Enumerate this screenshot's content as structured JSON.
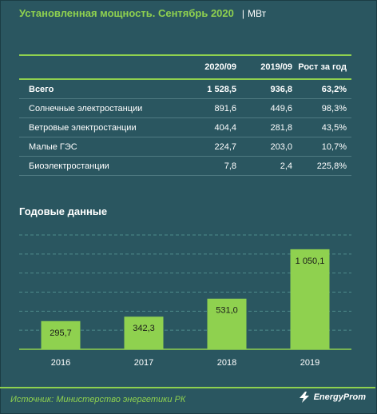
{
  "header": {
    "title": "Установленная мощность. Сентябрь 2020",
    "separator": "|",
    "unit": "МВт"
  },
  "table": {
    "columns": [
      "",
      "2020/09",
      "2019/09",
      "Рост за год"
    ],
    "rows": [
      [
        "Всего",
        "1 528,5",
        "936,8",
        "63,2%"
      ],
      [
        "Солнечные электростанции",
        "891,6",
        "449,6",
        "98,3%"
      ],
      [
        "Ветровые электростанции",
        "404,4",
        "281,8",
        "43,5%"
      ],
      [
        "Малые ГЭС",
        "224,7",
        "203,0",
        "10,7%"
      ],
      [
        "Биоэлектростанции",
        "7,8",
        "2,4",
        "225,8%"
      ]
    ]
  },
  "chart_data": {
    "type": "bar",
    "title": "Годовые данные",
    "categories": [
      "2016",
      "2017",
      "2018",
      "2019"
    ],
    "values": [
      295.7,
      342.3,
      531.0,
      1050.1
    ],
    "value_labels": [
      "295,7",
      "342,3",
      "531,0",
      "1 050,1"
    ],
    "ylim": [
      0,
      1200
    ],
    "grid": true,
    "bar_color": "#8fd14f"
  },
  "footer": {
    "source": "Источник: Министерство энергетики РК",
    "brand": "EnergyProm"
  },
  "colors": {
    "background": "#2a5660",
    "accent": "#8fd14f",
    "gridline": "#4f8c8c"
  }
}
